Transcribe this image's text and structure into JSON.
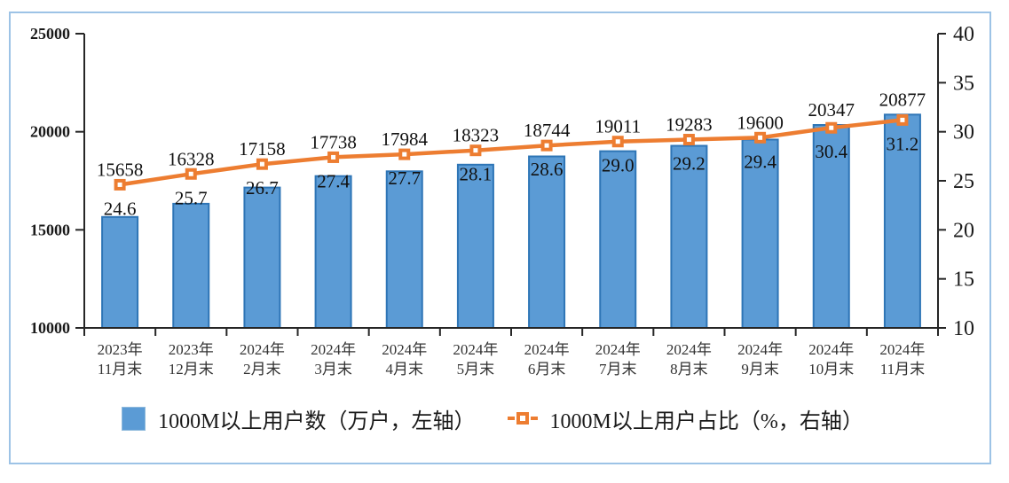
{
  "frame": {
    "border_color": "#9DC3E6",
    "background": "#FFFFFF"
  },
  "axis_color": "#262626",
  "text_color": "#1A1A1A",
  "chart_data": {
    "type": "combo-bar-line",
    "title": "",
    "categories": [
      [
        "2023年",
        "11月末"
      ],
      [
        "2023年",
        "12月末"
      ],
      [
        "2024年",
        "2月末"
      ],
      [
        "2024年",
        "3月末"
      ],
      [
        "2024年",
        "4月末"
      ],
      [
        "2024年",
        "5月末"
      ],
      [
        "2024年",
        "6月末"
      ],
      [
        "2024年",
        "7月末"
      ],
      [
        "2024年",
        "8月末"
      ],
      [
        "2024年",
        "9月末"
      ],
      [
        "2024年",
        "10月末"
      ],
      [
        "2024年",
        "11月末"
      ]
    ],
    "series": [
      {
        "name": "1000M以上用户数（万户，左轴）",
        "type": "bar",
        "axis": "left",
        "color": "#5B9BD5",
        "border_color": "#2E75B6",
        "values": [
          15658,
          16328,
          17158,
          17738,
          17984,
          18323,
          18744,
          19011,
          19283,
          19600,
          20347,
          20877
        ]
      },
      {
        "name": "1000M以上用户占比（%，右轴）",
        "type": "line",
        "axis": "right",
        "color": "#ED7D31",
        "marker": "square-white-core",
        "label_decimals": 1,
        "values": [
          24.6,
          25.7,
          26.7,
          27.4,
          27.7,
          28.1,
          28.6,
          29.0,
          29.2,
          29.4,
          30.4,
          31.2
        ]
      }
    ],
    "left_axis": {
      "min": 10000,
      "max": 25000,
      "ticks": [
        "25000",
        "20000",
        "15000",
        "10000"
      ]
    },
    "right_axis": {
      "min": 10,
      "max": 40,
      "ticks": [
        "40",
        "35",
        "30",
        "25",
        "20",
        "15",
        "10"
      ]
    },
    "grid": false,
    "legend_position": "bottom"
  }
}
